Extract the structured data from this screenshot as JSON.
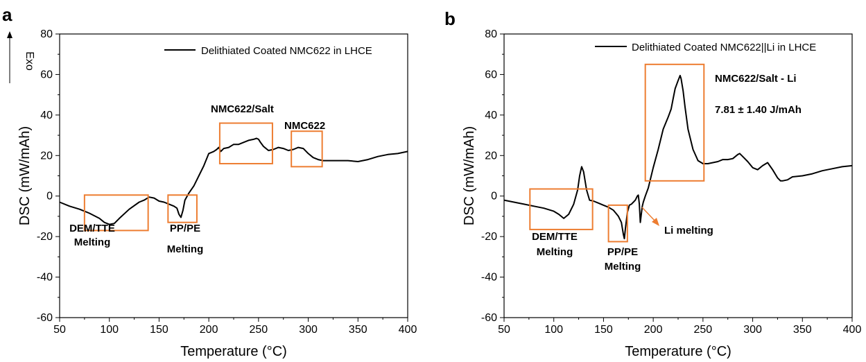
{
  "chart_data": [
    {
      "panel": "a",
      "type": "line",
      "xlabel": "Temperature (°C)",
      "ylabel": "DSC (mW/mAh)",
      "xlim": [
        50,
        400
      ],
      "ylim": [
        -60,
        80
      ],
      "xticks": [
        50,
        100,
        150,
        200,
        250,
        300,
        350,
        400
      ],
      "yticks": [
        -60,
        -40,
        -20,
        0,
        20,
        40,
        60,
        80
      ],
      "exo_label": "Exo",
      "legend": {
        "position": "top-right",
        "entries": [
          "Delithiated Coated NMC622 in LHCE"
        ]
      },
      "series": [
        {
          "name": "Delithiated Coated NMC622 in LHCE",
          "color": "#000000",
          "x": [
            50,
            60,
            70,
            80,
            90,
            95,
            100,
            105,
            110,
            120,
            130,
            135,
            140,
            145,
            150,
            155,
            160,
            165,
            168,
            170,
            172,
            174,
            176,
            180,
            185,
            190,
            195,
            200,
            205,
            208,
            210,
            212,
            215,
            220,
            225,
            230,
            235,
            240,
            245,
            248,
            250,
            252,
            255,
            260,
            265,
            270,
            275,
            280,
            285,
            290,
            295,
            300,
            305,
            310,
            315,
            320,
            330,
            340,
            350,
            360,
            370,
            380,
            390,
            400
          ],
          "y": [
            -3,
            -5,
            -6.5,
            -8.5,
            -11,
            -13,
            -14,
            -13.5,
            -11,
            -6.5,
            -3,
            -2,
            -0.5,
            -1,
            -2.5,
            -3,
            -4,
            -5,
            -6,
            -9,
            -10.5,
            -7,
            -2,
            1.5,
            5,
            10,
            15,
            21,
            22,
            23,
            24,
            22,
            23.5,
            24,
            25.5,
            25.5,
            26.5,
            27.5,
            28,
            28.5,
            28,
            26.5,
            24.5,
            22.5,
            23,
            24,
            23.5,
            22.5,
            23,
            24,
            23.5,
            21,
            19,
            18,
            17.5,
            17.5,
            17.5,
            17.5,
            17,
            18,
            19.5,
            20.5,
            21,
            22
          ]
        }
      ],
      "annotations": [
        {
          "lines": [
            "DEM/TTE",
            "Melting"
          ],
          "box": {
            "x": [
              75,
              139
            ],
            "y": [
              -17,
              0.5
            ]
          }
        },
        {
          "lines": [
            "PP/PE",
            "Melting"
          ],
          "box": {
            "x": [
              159,
              188
            ],
            "y": [
              -13,
              0.5
            ]
          }
        },
        {
          "lines": [
            "NMC622/Salt"
          ],
          "box": {
            "x": [
              211,
              264
            ],
            "y": [
              16,
              36
            ]
          }
        },
        {
          "lines": [
            "NMC622"
          ],
          "box": {
            "x": [
              283,
              314
            ],
            "y": [
              14.5,
              32
            ]
          }
        }
      ]
    },
    {
      "panel": "b",
      "type": "line",
      "xlabel": "Temperature (°C)",
      "ylabel": "DSC (mW/mAh)",
      "xlim": [
        50,
        400
      ],
      "ylim": [
        -60,
        80
      ],
      "xticks": [
        50,
        100,
        150,
        200,
        250,
        300,
        350,
        400
      ],
      "yticks": [
        -60,
        -40,
        -20,
        0,
        20,
        40,
        60,
        80
      ],
      "legend": {
        "position": "top-right",
        "entries": [
          "Delithiated Coated NMC622||Li in LHCE"
        ]
      },
      "series": [
        {
          "name": "Delithiated Coated NMC622||Li in LHCE",
          "color": "#000000",
          "x": [
            50,
            60,
            70,
            80,
            90,
            100,
            105,
            110,
            115,
            120,
            124,
            126,
            128,
            130,
            133,
            136,
            140,
            145,
            150,
            155,
            160,
            165,
            168,
            170,
            171,
            172,
            174,
            176,
            178,
            180,
            182,
            184,
            185,
            186,
            187,
            188,
            189,
            190,
            192,
            195,
            200,
            205,
            210,
            215,
            218,
            220,
            222,
            225,
            227,
            228,
            230,
            232,
            235,
            240,
            245,
            250,
            255,
            260,
            265,
            270,
            275,
            280,
            285,
            287,
            290,
            295,
            300,
            305,
            310,
            315,
            320,
            325,
            328,
            330,
            335,
            340,
            350,
            360,
            370,
            380,
            390,
            400
          ],
          "y": [
            -2,
            -3,
            -4,
            -5,
            -6,
            -7.5,
            -9,
            -11,
            -9,
            -4,
            3,
            10,
            14.5,
            12,
            3,
            -2,
            -2.5,
            -3.5,
            -4.5,
            -5.5,
            -7,
            -10,
            -13,
            -19,
            -21,
            -16,
            -8,
            -4.5,
            -4,
            -3,
            -2,
            0,
            0.5,
            -4,
            -13,
            -9,
            -5,
            -3,
            0,
            4,
            14,
            23,
            33,
            39,
            43,
            48,
            53,
            57,
            59.5,
            58,
            52,
            44,
            33,
            23,
            17.5,
            16,
            16,
            16.5,
            17,
            18,
            18,
            18.5,
            20.5,
            21,
            19.5,
            17,
            14,
            13,
            15,
            16.5,
            13,
            9,
            7.5,
            7.5,
            8,
            9.5,
            10,
            11,
            12.5,
            13.5,
            14.5,
            15
          ]
        }
      ],
      "annotations": [
        {
          "lines": [
            "DEM/TTE",
            "Melting"
          ],
          "box": {
            "x": [
              76,
              139
            ],
            "y": [
              -16.5,
              3.5
            ]
          }
        },
        {
          "lines": [
            "PP/PE",
            "Melting"
          ],
          "box": {
            "x": [
              155,
              174
            ],
            "y": [
              -22.5,
              -4.5
            ]
          }
        },
        {
          "lines": [
            "NMC622/Salt - Li",
            "7.81 ± 1.40 J/mAh"
          ],
          "box": {
            "x": [
              192,
              251
            ],
            "y": [
              7.5,
              65
            ]
          }
        },
        {
          "lines": [
            "Li melting"
          ]
        }
      ]
    }
  ]
}
